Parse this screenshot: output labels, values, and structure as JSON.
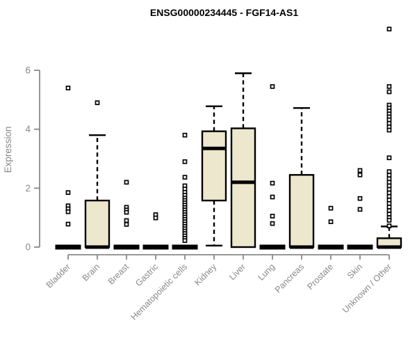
{
  "chart_data": {
    "type": "boxplot",
    "title": "ENSG00000234445 - FGF14-AS1",
    "ylabel": "Expression",
    "xlabel": "",
    "ylim": [
      0,
      6
    ],
    "yticks": [
      0,
      2,
      4,
      6
    ],
    "grid": false,
    "legend": "none",
    "box_fill_color": "#ece7cd",
    "axis_color": "#888888",
    "box_line_color": "#000000",
    "categories": [
      "Bladder",
      "Brain",
      "Breast",
      "Gastric",
      "Hematopoietic cells",
      "Kidney",
      "Liver",
      "Lung",
      "Pancreas",
      "Prostate",
      "Skin",
      "Unknown / Other"
    ],
    "series": [
      {
        "name": "Bladder",
        "q1": 0,
        "median": 0,
        "q3": 0,
        "whisker_low": 0,
        "whisker_high": 0,
        "outliers": [
          5.4,
          1.85,
          1.4,
          1.3,
          1.2,
          0.78
        ]
      },
      {
        "name": "Brain",
        "q1": 0,
        "median": 0,
        "q3": 1.58,
        "whisker_low": 0,
        "whisker_high": 3.8,
        "outliers": [
          4.9
        ]
      },
      {
        "name": "Breast",
        "q1": 0,
        "median": 0,
        "q3": 0,
        "whisker_low": 0,
        "whisker_high": 0,
        "outliers": [
          2.2,
          1.35,
          1.26,
          1.18,
          0.9,
          0.77
        ]
      },
      {
        "name": "Gastric",
        "q1": 0,
        "median": 0,
        "q3": 0,
        "whisker_low": 0,
        "whisker_high": 0,
        "outliers": [
          1.1,
          0.99
        ]
      },
      {
        "name": "Hematopoietic cells",
        "q1": 0,
        "median": 0,
        "q3": 0,
        "whisker_low": 0,
        "whisker_high": 0,
        "outliers": [
          3.8,
          2.9,
          2.37,
          2.08,
          1.97,
          1.86,
          1.76,
          1.66,
          1.58,
          1.5,
          1.42,
          1.34,
          1.26,
          1.18,
          1.1,
          1.02,
          0.94,
          0.86,
          0.78,
          0.7,
          0.62,
          0.54,
          0.46,
          0.38,
          0.3,
          0.22
        ]
      },
      {
        "name": "Kidney",
        "q1": 1.58,
        "median": 3.35,
        "q3": 3.93,
        "whisker_low": 0.05,
        "whisker_high": 4.78,
        "outliers": []
      },
      {
        "name": "Liver",
        "q1": 0,
        "median": 2.2,
        "q3": 4.03,
        "whisker_low": 0,
        "whisker_high": 5.9,
        "outliers": []
      },
      {
        "name": "Lung",
        "q1": 0,
        "median": 0,
        "q3": 0,
        "whisker_low": 0,
        "whisker_high": 0,
        "outliers": [
          5.45,
          2.17,
          1.7,
          1.05,
          0.8
        ]
      },
      {
        "name": "Pancreas",
        "q1": 0,
        "median": 0,
        "q3": 2.45,
        "whisker_low": 0,
        "whisker_high": 4.72,
        "outliers": []
      },
      {
        "name": "Prostate",
        "q1": 0,
        "median": 0,
        "q3": 0,
        "whisker_low": 0,
        "whisker_high": 0,
        "outliers": [
          1.32,
          0.86
        ]
      },
      {
        "name": "Skin",
        "q1": 0,
        "median": 0,
        "q3": 0,
        "whisker_low": 0,
        "whisker_high": 0,
        "outliers": [
          2.6,
          2.45,
          1.65,
          1.28
        ]
      },
      {
        "name": "Unknown / Other",
        "q1": 0,
        "median": 0,
        "q3": 0.3,
        "whisker_low": 0,
        "whisker_high": 0.7,
        "outliers": [
          7.4,
          5.45,
          5.27,
          4.82,
          4.72,
          4.62,
          4.52,
          4.42,
          4.32,
          4.2,
          4.08,
          3.97,
          3.03,
          2.56,
          2.44,
          2.32,
          2.2,
          2.08,
          1.96,
          1.84,
          1.72,
          1.6,
          1.48,
          1.36,
          1.24,
          1.12,
          1.0,
          0.91,
          0.72
        ]
      }
    ]
  }
}
